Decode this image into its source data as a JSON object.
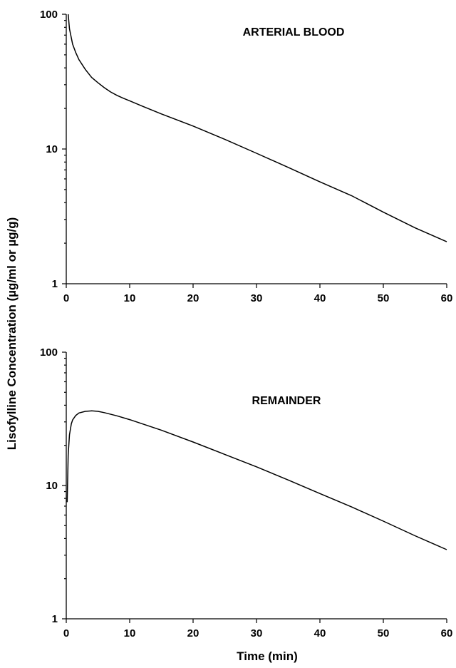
{
  "figure": {
    "ylabel": "Lisofylline Concentration (µg/ml or µg/g)",
    "xlabel": "Time (min)"
  },
  "chart_data": [
    {
      "type": "line",
      "title": "ARTERIAL BLOOD",
      "xlabel": "",
      "ylabel": "",
      "xlim": [
        0,
        60
      ],
      "ylim": [
        1,
        100
      ],
      "yscale": "log",
      "x_ticks": [
        0,
        10,
        20,
        30,
        40,
        50,
        60
      ],
      "y_ticks": [
        1,
        10,
        100
      ],
      "grid": false,
      "series": [
        {
          "x": [
            0.3,
            0.5,
            1,
            1.5,
            2,
            3,
            4,
            5,
            6,
            7,
            8,
            9,
            10,
            12,
            15,
            20,
            25,
            30,
            35,
            40,
            45,
            50,
            55,
            60
          ],
          "y": [
            100,
            78,
            60,
            52,
            46,
            39,
            34,
            31,
            28.5,
            26.5,
            25,
            23.8,
            22.8,
            20.8,
            18.2,
            14.8,
            11.8,
            9.3,
            7.3,
            5.7,
            4.5,
            3.4,
            2.6,
            2.05
          ]
        }
      ]
    },
    {
      "type": "line",
      "title": "REMAINDER",
      "xlabel": "Time (min)",
      "ylabel": "",
      "xlim": [
        0,
        60
      ],
      "ylim": [
        1,
        100
      ],
      "yscale": "log",
      "x_ticks": [
        0,
        10,
        20,
        30,
        40,
        50,
        60
      ],
      "y_ticks": [
        1,
        10,
        100
      ],
      "grid": false,
      "series": [
        {
          "x": [
            0.15,
            0.3,
            0.5,
            0.8,
            1,
            1.5,
            2,
            3,
            4,
            5,
            6,
            8,
            10,
            15,
            20,
            25,
            30,
            35,
            40,
            45,
            50,
            55,
            60
          ],
          "y": [
            7.5,
            17,
            24,
            29,
            31,
            33.5,
            35,
            36,
            36.3,
            36,
            35.2,
            33.3,
            31.2,
            26,
            21.2,
            17.1,
            13.8,
            11,
            8.7,
            6.9,
            5.4,
            4.2,
            3.3
          ]
        }
      ]
    }
  ]
}
